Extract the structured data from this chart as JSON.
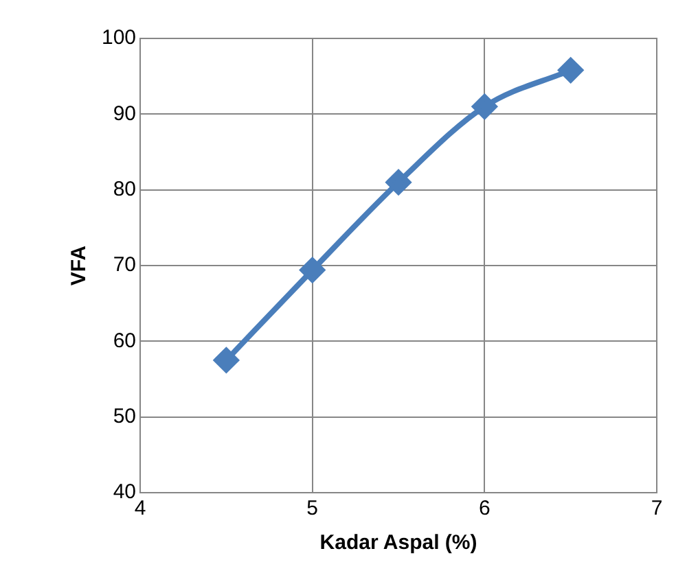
{
  "chart_data": {
    "type": "line",
    "xlabel": "Kadar Aspal (%)",
    "ylabel": "VFA",
    "x": [
      4.5,
      5,
      5.5,
      6,
      6.5
    ],
    "series": [
      {
        "color": "#4a7ebb",
        "values": [
          57.5,
          69.4,
          81,
          91,
          95.8
        ]
      }
    ],
    "xlim": [
      4,
      7
    ],
    "xticks": [
      4,
      5,
      6,
      7
    ],
    "ylim": [
      40,
      100
    ],
    "yticks": [
      40,
      50,
      60,
      70,
      80,
      90,
      100
    ],
    "grid": true,
    "legend": false,
    "marker": "diamond",
    "line_style": "solid"
  }
}
